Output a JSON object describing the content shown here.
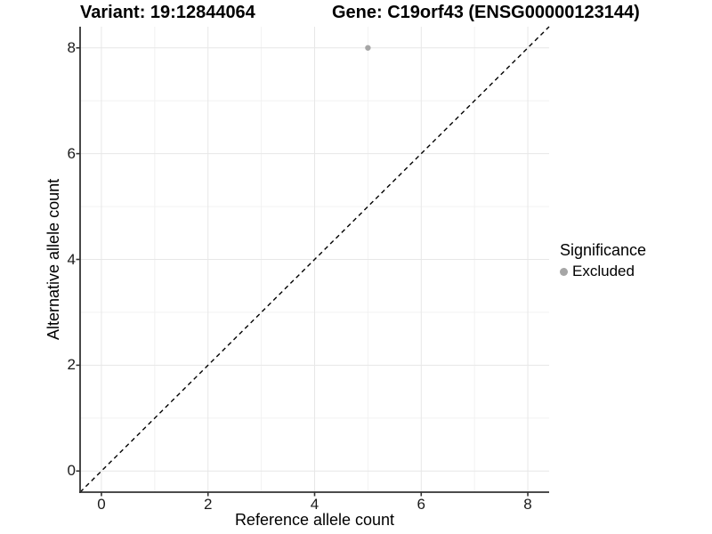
{
  "header": {
    "variant_title": "Variant: 19:12844064",
    "gene_title": "Gene: C19orf43 (ENSG00000123144)"
  },
  "legend": {
    "title": "Significance",
    "items": [
      {
        "label": "Excluded",
        "color": "#a6a6a6"
      }
    ]
  },
  "colors": {
    "grid_major": "#e7e7e7",
    "grid_minor": "#f2f2f2",
    "axis_line": "#333333",
    "tick_mark": "#333333",
    "reference_line": "#000000",
    "point": "#a6a6a6",
    "background": "#ffffff"
  },
  "chart_data": {
    "type": "scatter",
    "title": "Variant: 19:12844064   Gene: C19orf43 (ENSG00000123144)",
    "xlabel": "Reference allele count",
    "ylabel": "Alternative allele count",
    "xlim": [
      -0.4,
      8.4
    ],
    "ylim": [
      -0.4,
      8.4
    ],
    "x_ticks": [
      0,
      2,
      4,
      6,
      8
    ],
    "y_ticks": [
      0,
      2,
      4,
      6,
      8
    ],
    "x_minor_gridlines": [
      1,
      3,
      5,
      7
    ],
    "y_minor_gridlines": [
      1,
      3,
      5,
      7
    ],
    "grid": true,
    "legend_title": "Significance",
    "legend_position": "right",
    "series": [
      {
        "name": "Excluded",
        "color": "#a6a6a6",
        "points": [
          {
            "x": 5,
            "y": 8
          }
        ]
      }
    ],
    "reference_line": {
      "slope": 1,
      "intercept": 0,
      "style": "dashed",
      "color": "#000000"
    }
  }
}
